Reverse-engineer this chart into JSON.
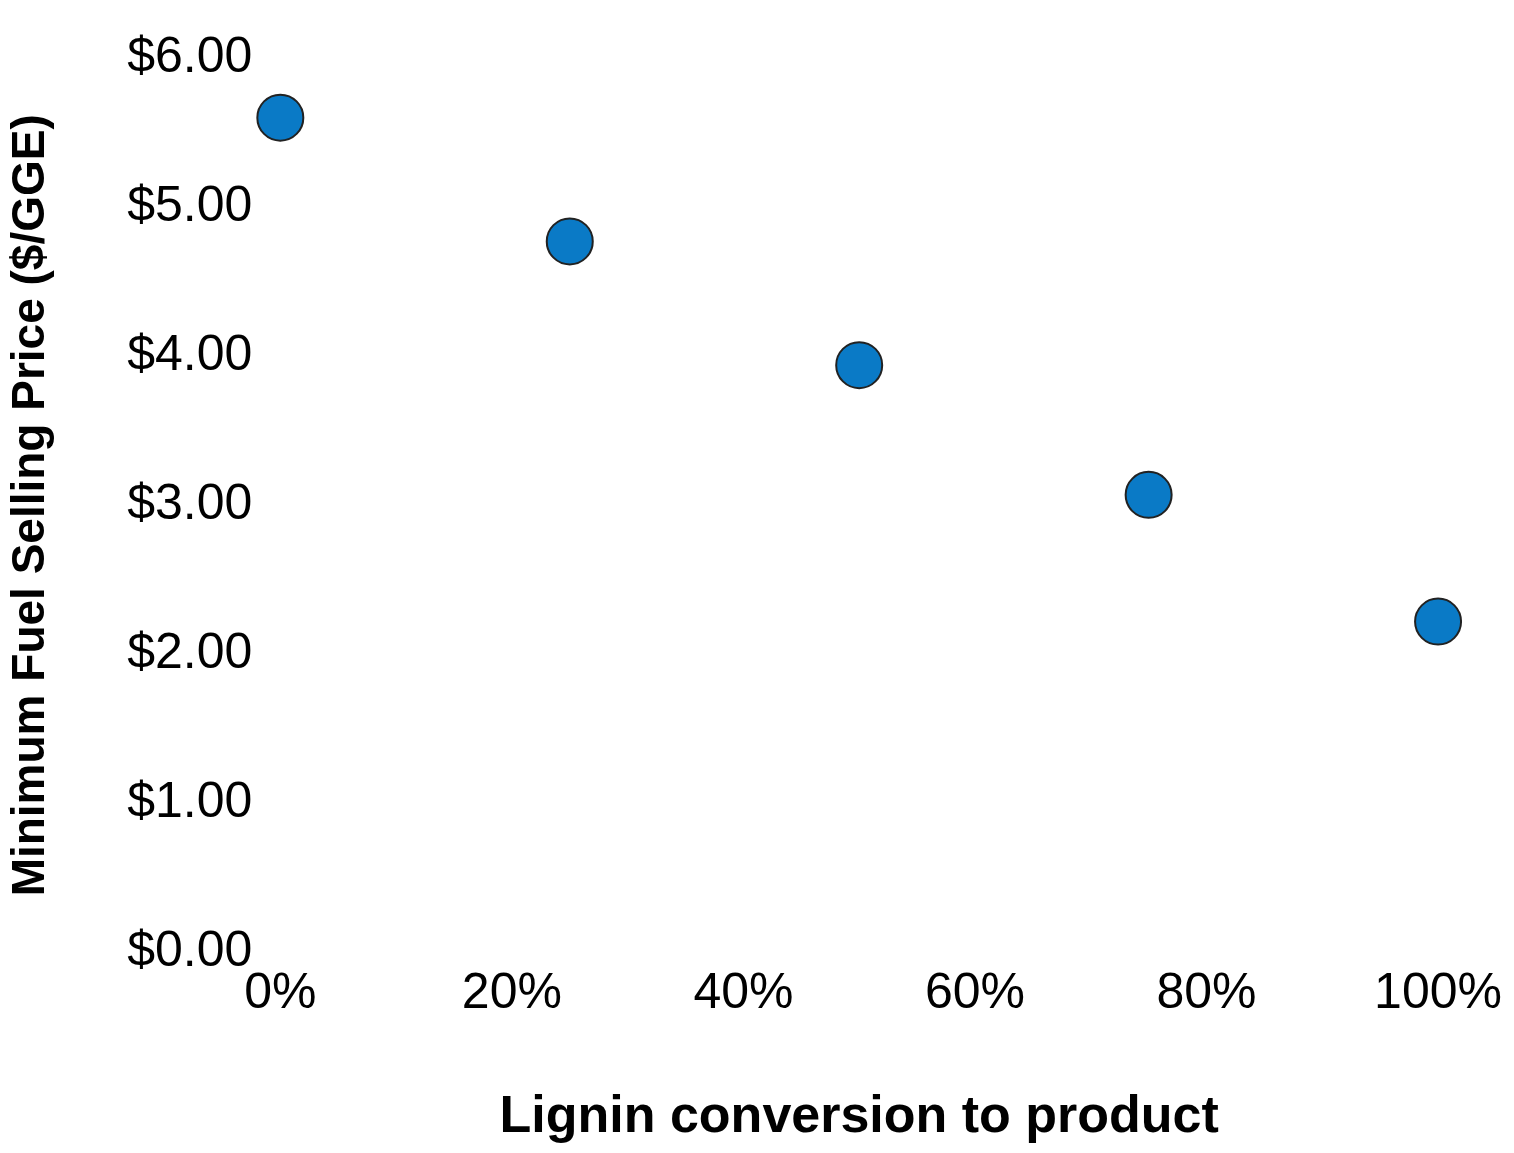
{
  "chart_data": {
    "type": "scatter",
    "xlabel": "Lignin conversion to product",
    "ylabel": "Minimum Fuel Selling Price ($/GGE)",
    "x": [
      0,
      25,
      50,
      75,
      100
    ],
    "series": [
      {
        "color": "#0a7ac6",
        "values": [
          5.6,
          4.77,
          3.94,
          3.07,
          2.22
        ]
      }
    ],
    "xlim": [
      0,
      100
    ],
    "xticks": [
      {
        "value": 0,
        "label": "0%"
      },
      {
        "value": 20,
        "label": "20%"
      },
      {
        "value": 40,
        "label": "40%"
      },
      {
        "value": 60,
        "label": "60%"
      },
      {
        "value": 80,
        "label": "80%"
      },
      {
        "value": 100,
        "label": "100%"
      }
    ],
    "ylim": [
      0,
      6
    ],
    "yticks": [
      {
        "value": 0,
        "label": "$0.00"
      },
      {
        "value": 1,
        "label": "$1.00"
      },
      {
        "value": 2,
        "label": "$2.00"
      },
      {
        "value": 3,
        "label": "$3.00"
      },
      {
        "value": 4,
        "label": "$4.00"
      },
      {
        "value": 5,
        "label": "$5.00"
      },
      {
        "value": 6,
        "label": "$6.00"
      }
    ],
    "grid": false,
    "legend": false,
    "marker": "circle"
  }
}
